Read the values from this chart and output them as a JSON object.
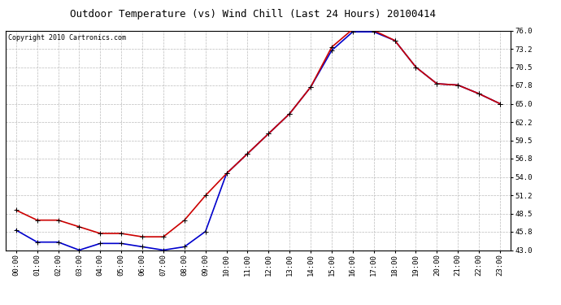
{
  "title": "Outdoor Temperature (vs) Wind Chill (Last 24 Hours) 20100414",
  "copyright": "Copyright 2010 Cartronics.com",
  "hours": [
    "00:00",
    "01:00",
    "02:00",
    "03:00",
    "04:00",
    "05:00",
    "06:00",
    "07:00",
    "08:00",
    "09:00",
    "10:00",
    "11:00",
    "12:00",
    "13:00",
    "14:00",
    "15:00",
    "16:00",
    "17:00",
    "18:00",
    "19:00",
    "20:00",
    "21:00",
    "22:00",
    "23:00"
  ],
  "temp": [
    49.0,
    47.5,
    47.5,
    46.5,
    45.5,
    45.5,
    45.0,
    45.0,
    47.5,
    51.2,
    54.5,
    57.5,
    60.5,
    63.5,
    67.5,
    73.5,
    76.2,
    76.0,
    74.5,
    70.5,
    68.0,
    67.8,
    66.5,
    65.0
  ],
  "windchill": [
    46.0,
    44.2,
    44.2,
    43.0,
    44.0,
    44.0,
    43.5,
    43.0,
    43.5,
    45.8,
    54.5,
    57.5,
    60.5,
    63.5,
    67.5,
    73.0,
    75.8,
    75.8,
    74.5,
    70.5,
    68.0,
    67.8,
    66.5,
    65.0
  ],
  "temp_color": "#cc0000",
  "windchill_color": "#0000cc",
  "bg_color": "#ffffff",
  "plot_bg_color": "#ffffff",
  "grid_color": "#bbbbbb",
  "ylim_min": 43.0,
  "ylim_max": 76.0,
  "yticks": [
    43.0,
    45.8,
    48.5,
    51.2,
    54.0,
    56.8,
    59.5,
    62.2,
    65.0,
    67.8,
    70.5,
    73.2,
    76.0
  ],
  "title_fontsize": 9,
  "tick_fontsize": 6.5,
  "copyright_fontsize": 6
}
